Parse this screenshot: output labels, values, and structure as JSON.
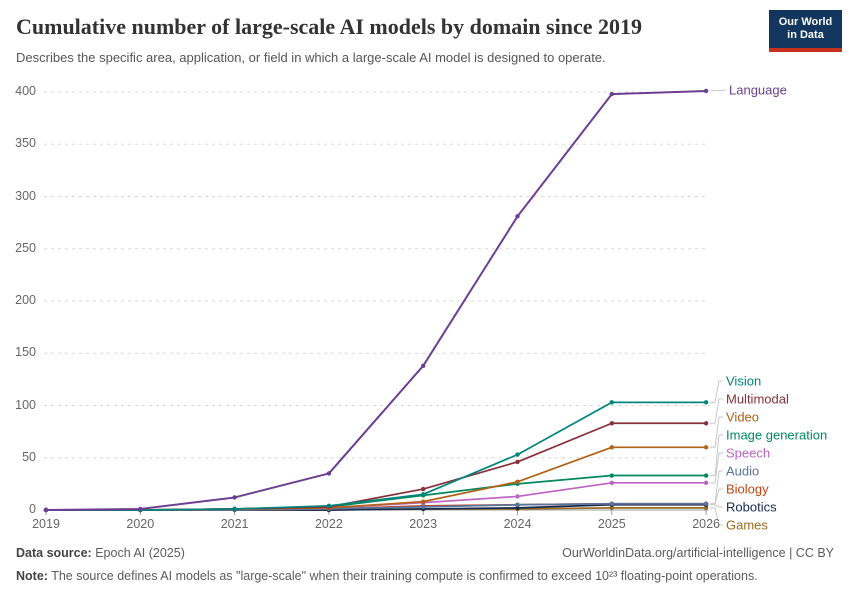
{
  "header": {
    "title": "Cumulative number of large-scale AI models by domain since 2019",
    "subtitle": "Describes the specific area, application, or field in which a large-scale AI model is designed to operate.",
    "logo": {
      "line1": "Our World",
      "line2": "in Data",
      "bg_color": "#12365E",
      "accent_color": "#C5301F"
    }
  },
  "chart_data": {
    "type": "line",
    "title": "Cumulative number of large-scale AI models by domain since 2019",
    "x": [
      2019,
      2020,
      2021,
      2022,
      2023,
      2024,
      2025,
      2026
    ],
    "yticks": [
      0,
      50,
      100,
      150,
      200,
      250,
      300,
      350,
      400
    ],
    "ylim": [
      0,
      400
    ],
    "grid": "horizontal-dashed",
    "legend_position": "right",
    "series": [
      {
        "name": "Language",
        "color": "#6D3E91",
        "values": [
          0,
          1,
          12,
          35,
          138,
          281,
          398,
          401
        ]
      },
      {
        "name": "Vision",
        "color": "#00847E",
        "values": [
          0,
          0,
          1,
          4,
          15,
          53,
          103,
          103
        ]
      },
      {
        "name": "Multimodal",
        "color": "#883039",
        "values": [
          0,
          0,
          1,
          3,
          20,
          46,
          83,
          83
        ]
      },
      {
        "name": "Video",
        "color": "#B16214",
        "values": [
          0,
          0,
          1,
          2,
          8,
          27,
          60,
          60
        ]
      },
      {
        "name": "Image generation",
        "color": "#00895E",
        "values": [
          0,
          0,
          1,
          3,
          14,
          25,
          33,
          33
        ]
      },
      {
        "name": "Speech",
        "color": "#BC64C4",
        "values": [
          0,
          0,
          1,
          2,
          7,
          13,
          26,
          26
        ]
      },
      {
        "name": "Audio",
        "color": "#58749F",
        "values": [
          0,
          0,
          0,
          1,
          3,
          5,
          6,
          6
        ]
      },
      {
        "name": "Biology",
        "color": "#BE4514",
        "values": [
          0,
          0,
          0,
          1,
          4,
          5,
          6,
          6
        ]
      },
      {
        "name": "Robotics",
        "color": "#15294E",
        "values": [
          0,
          0,
          0,
          0,
          1,
          2,
          5,
          5
        ]
      },
      {
        "name": "Games",
        "color": "#9A6A1F",
        "values": [
          0,
          0,
          0,
          0,
          1,
          1,
          2,
          2
        ]
      }
    ]
  },
  "footer": {
    "datasource_label": "Data source:",
    "datasource_value": "Epoch AI (2025)",
    "citation_url": "OurWorldinData.org/artificial-intelligence",
    "citation_suffix": " | CC BY",
    "note_label": "Note:",
    "note_text": "The source defines AI models as \"large-scale\" when their training compute is confirmed to exceed 10²³ floating-point operations."
  }
}
